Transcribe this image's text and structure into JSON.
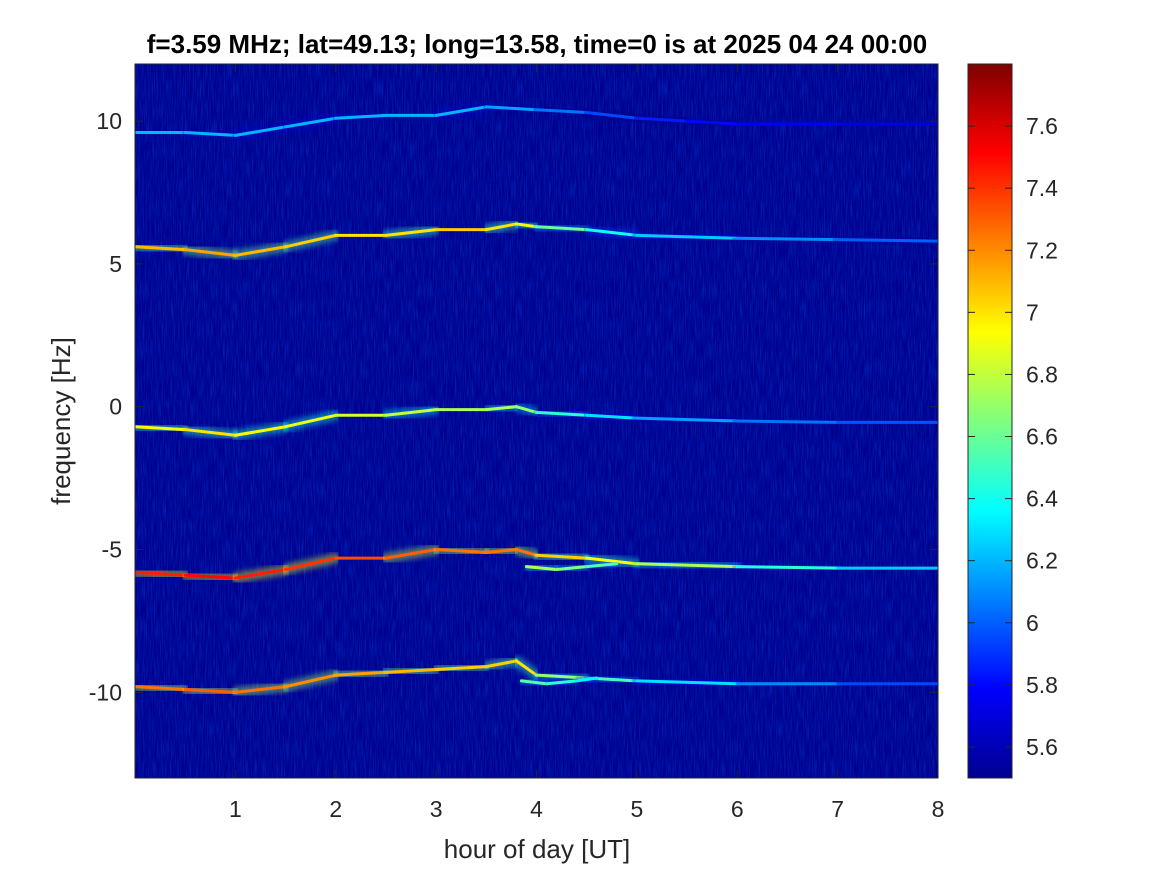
{
  "chart_data": {
    "type": "heatmap",
    "title": "f=3.59 MHz;  lat=49.13; long=13.58, time=0 is at 2025 04 24 00:00",
    "xlabel": "hour of day [UT]",
    "ylabel": "frequency [Hz]",
    "xlim": [
      0,
      8
    ],
    "ylim": [
      -13,
      12
    ],
    "x_ticks": [
      1,
      2,
      3,
      4,
      5,
      6,
      7,
      8
    ],
    "x_tick_labels": [
      "1",
      "2",
      "3",
      "4",
      "5",
      "6",
      "7",
      "8"
    ],
    "y_ticks": [
      10,
      5,
      0,
      -5,
      -10
    ],
    "y_tick_labels": [
      "10",
      "5",
      "0",
      "-5",
      "-10"
    ],
    "colorbar": {
      "colormap": "jet",
      "range": [
        5.5,
        7.8
      ],
      "ticks": [
        7.6,
        7.4,
        7.2,
        7,
        6.8,
        6.6,
        6.4,
        6.2,
        6,
        5.8,
        5.6
      ],
      "tick_labels": [
        "7.6",
        "7.4",
        "7.2",
        "7",
        "6.8",
        "6.6",
        "6.4",
        "6.2",
        "6",
        "5.8",
        "5.6"
      ]
    },
    "background_level": 5.6,
    "traces": [
      {
        "points": [
          [
            0,
            9.6
          ],
          [
            0.5,
            9.6
          ],
          [
            1,
            9.5
          ],
          [
            1.5,
            9.8
          ],
          [
            2,
            10.1
          ],
          [
            2.5,
            10.2
          ],
          [
            3,
            10.2
          ],
          [
            3.5,
            10.5
          ],
          [
            4,
            10.4
          ],
          [
            4.5,
            10.3
          ],
          [
            5,
            10.1
          ],
          [
            5.5,
            10.0
          ],
          [
            6,
            9.9
          ],
          [
            7,
            9.9
          ],
          [
            8,
            9.9
          ]
        ],
        "intensity": [
          6.2,
          6.2,
          6.2,
          6.2,
          6.2,
          6.2,
          6.2,
          6.2,
          6.1,
          6.0,
          5.9,
          5.8,
          5.8,
          5.75,
          5.7
        ]
      },
      {
        "points": [
          [
            0,
            5.6
          ],
          [
            0.5,
            5.5
          ],
          [
            1,
            5.3
          ],
          [
            1.5,
            5.6
          ],
          [
            2,
            6.0
          ],
          [
            2.5,
            6.0
          ],
          [
            3,
            6.2
          ],
          [
            3.5,
            6.2
          ],
          [
            3.8,
            6.4
          ],
          [
            4,
            6.3
          ],
          [
            4.5,
            6.2
          ],
          [
            5,
            6.0
          ],
          [
            6,
            5.9
          ],
          [
            7,
            5.85
          ],
          [
            8,
            5.8
          ]
        ],
        "intensity": [
          7.2,
          7.0,
          7.3,
          6.9,
          7.2,
          6.8,
          7.2,
          6.9,
          7.1,
          6.7,
          6.5,
          6.3,
          6.2,
          6.0,
          6.0
        ]
      },
      {
        "points": [
          [
            0,
            -0.7
          ],
          [
            0.5,
            -0.8
          ],
          [
            1,
            -1.0
          ],
          [
            1.5,
            -0.7
          ],
          [
            2,
            -0.3
          ],
          [
            2.5,
            -0.3
          ],
          [
            3,
            -0.1
          ],
          [
            3.5,
            -0.1
          ],
          [
            3.8,
            0.0
          ],
          [
            4,
            -0.2
          ],
          [
            4.5,
            -0.3
          ],
          [
            5,
            -0.4
          ],
          [
            6,
            -0.5
          ],
          [
            7,
            -0.55
          ],
          [
            8,
            -0.55
          ]
        ],
        "intensity": [
          7.0,
          6.9,
          7.1,
          6.8,
          7.0,
          6.7,
          6.9,
          6.6,
          6.9,
          6.5,
          6.4,
          6.2,
          6.1,
          6.0,
          5.95
        ]
      },
      {
        "points": [
          [
            0,
            -5.8
          ],
          [
            0.5,
            -5.9
          ],
          [
            1,
            -6.0
          ],
          [
            1.5,
            -5.7
          ],
          [
            2,
            -5.3
          ],
          [
            2.5,
            -5.3
          ],
          [
            3,
            -5.0
          ],
          [
            3.5,
            -5.1
          ],
          [
            3.8,
            -5.0
          ],
          [
            4,
            -5.2
          ],
          [
            4.5,
            -5.3
          ],
          [
            5,
            -5.5
          ],
          [
            6,
            -5.6
          ],
          [
            7,
            -5.65
          ],
          [
            8,
            -5.65
          ]
        ],
        "intensity": [
          7.5,
          7.4,
          7.6,
          7.3,
          7.5,
          7.2,
          7.4,
          7.1,
          7.4,
          7.1,
          7.0,
          6.9,
          6.6,
          6.3,
          6.2
        ]
      },
      {
        "points": [
          [
            0,
            -9.8
          ],
          [
            0.5,
            -9.9
          ],
          [
            1,
            -10.0
          ],
          [
            1.5,
            -9.8
          ],
          [
            2,
            -9.4
          ],
          [
            2.5,
            -9.3
          ],
          [
            3,
            -9.2
          ],
          [
            3.5,
            -9.1
          ],
          [
            3.8,
            -8.9
          ],
          [
            4,
            -9.4
          ],
          [
            4.5,
            -9.5
          ],
          [
            5,
            -9.6
          ],
          [
            6,
            -9.7
          ],
          [
            7,
            -9.7
          ],
          [
            8,
            -9.7
          ]
        ],
        "intensity": [
          7.3,
          7.2,
          7.4,
          7.1,
          7.3,
          7.0,
          7.2,
          6.9,
          7.2,
          6.8,
          6.6,
          6.4,
          6.2,
          6.0,
          5.9
        ]
      },
      {
        "points": [
          [
            3.9,
            -5.6
          ],
          [
            4.2,
            -5.7
          ],
          [
            4.5,
            -5.6
          ],
          [
            4.8,
            -5.5
          ]
        ],
        "intensity": [
          6.8,
          6.7,
          6.6,
          6.5
        ]
      },
      {
        "points": [
          [
            3.85,
            -9.6
          ],
          [
            4.1,
            -9.7
          ],
          [
            4.4,
            -9.6
          ],
          [
            4.6,
            -9.5
          ]
        ],
        "intensity": [
          6.6,
          6.5,
          6.4,
          6.3
        ]
      }
    ]
  }
}
